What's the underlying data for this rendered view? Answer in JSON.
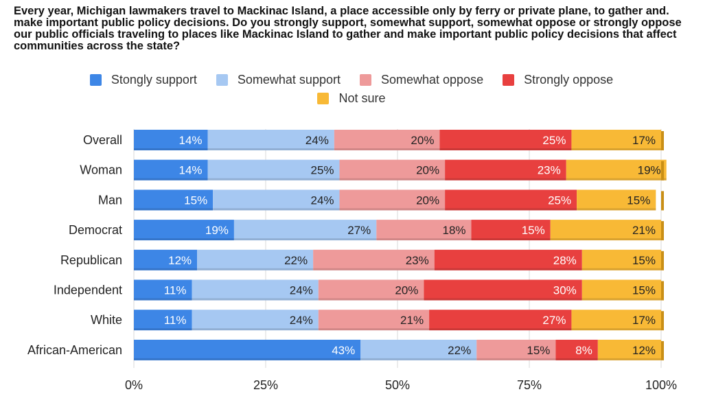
{
  "title": "Every year, Michigan lawmakers travel to Mackinac Island, a place accessible only by ferry or private plane, to gather and. make important public policy decisions. Do you strongly support, somewhat support, somewhat oppose or strongly oppose our public officials traveling to places like Mackinac Island to gather and make important public policy decisions that affect communities across the state?",
  "chart_data": {
    "type": "bar",
    "orientation": "horizontal",
    "stacked": "percent",
    "categories": [
      "Overall",
      "Woman",
      "Man",
      "Democrat",
      "Republican",
      "Independent",
      "White",
      "African-American"
    ],
    "series": [
      {
        "name": "Stongly support",
        "color": "#3d86e6",
        "label_color": "#ffffff",
        "values": [
          14,
          14,
          15,
          19,
          12,
          11,
          11,
          43
        ]
      },
      {
        "name": "Somewhat support",
        "color": "#a6c8f2",
        "label_color": "#222222",
        "values": [
          24,
          25,
          24,
          27,
          22,
          24,
          24,
          22
        ]
      },
      {
        "name": "Somewhat oppose",
        "color": "#ee9a9a",
        "label_color": "#222222",
        "values": [
          20,
          20,
          20,
          18,
          23,
          20,
          21,
          15
        ]
      },
      {
        "name": "Strongly oppose",
        "color": "#e8403f",
        "label_color": "#ffffff",
        "values": [
          25,
          23,
          25,
          15,
          28,
          30,
          27,
          8
        ]
      },
      {
        "name": "Not sure",
        "color": "#f8b936",
        "label_color": "#222222",
        "values": [
          17,
          19,
          15,
          21,
          15,
          15,
          17,
          12
        ]
      }
    ],
    "x_ticks": [
      "0%",
      "25%",
      "50%",
      "75%",
      "100%"
    ],
    "xlim": [
      0,
      100
    ],
    "legend_position": "top",
    "grid": true
  }
}
